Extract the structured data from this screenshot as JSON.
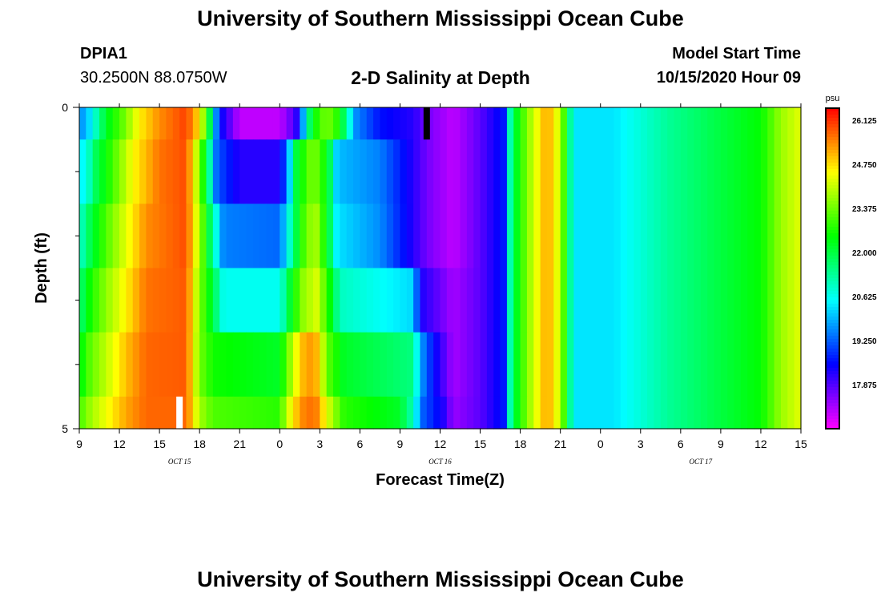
{
  "header": {
    "title": "University of Southern Mississippi Ocean Cube",
    "station_name": "DPIA1",
    "station_coords": "30.2500N 88.0750W",
    "model_start_label": "Model Start Time",
    "model_start_value": "10/15/2020 Hour 09"
  },
  "footer": {
    "title": "University of Southern Mississippi Ocean Cube"
  },
  "chart_data": {
    "type": "heatmap",
    "title": "2-D Salinity at Depth",
    "xlabel": "Forecast Time(Z)",
    "ylabel": "Depth (ft)",
    "colorbar": {
      "unit_label": "psu",
      "min": 16.5,
      "max": 26.5,
      "ticks": [
        "26.125",
        "24.750",
        "23.375",
        "22.000",
        "20.625",
        "19.250",
        "17.875"
      ],
      "tick_values": [
        26.125,
        24.75,
        23.375,
        22.0,
        20.625,
        19.25,
        17.875
      ]
    },
    "x_axis": {
      "range_hours": [
        0,
        54
      ],
      "tick_labels": [
        "9",
        "12",
        "15",
        "18",
        "21",
        "0",
        "3",
        "6",
        "9",
        "12",
        "15",
        "18",
        "21",
        "0",
        "3",
        "6",
        "9",
        "12",
        "15"
      ],
      "date_labels": [
        {
          "text": "OCT 15",
          "hour": 7.5
        },
        {
          "text": "OCT 16",
          "hour": 27
        },
        {
          "text": "OCT 17",
          "hour": 46.5
        }
      ]
    },
    "y_axis": {
      "range": [
        0,
        5
      ],
      "tick_labels": [
        "0",
        "5"
      ],
      "minor_ticks": [
        1,
        2,
        3,
        4
      ]
    },
    "layers": [
      {
        "depth_range": [
          0,
          0.5
        ],
        "knots": [
          [
            0,
            19.5
          ],
          [
            0.8,
            20.3
          ],
          [
            2,
            22.2
          ],
          [
            3.3,
            23.3
          ],
          [
            4.5,
            24.6
          ],
          [
            6,
            25.4
          ],
          [
            8,
            26.0
          ],
          [
            8.9,
            24.8
          ],
          [
            9.6,
            22.8
          ],
          [
            10,
            20.5
          ],
          [
            10.5,
            18.6
          ],
          [
            12,
            17.0
          ],
          [
            15,
            17.0
          ],
          [
            16.2,
            18.0
          ],
          [
            16.8,
            20.0
          ],
          [
            17.4,
            22.3
          ],
          [
            18.5,
            23.5
          ],
          [
            19.5,
            22.6
          ],
          [
            20,
            21.2
          ],
          [
            20.7,
            19.6
          ],
          [
            22.5,
            18.6
          ],
          [
            25,
            18.2
          ],
          [
            26,
            17.6
          ],
          [
            28,
            17.0
          ],
          [
            30,
            17.8
          ],
          [
            32,
            18.8
          ],
          [
            32.3,
            21.6
          ],
          [
            33.5,
            23.5
          ],
          [
            35,
            25.3
          ],
          [
            36,
            24.0
          ],
          [
            36.5,
            22.2
          ],
          [
            37,
            20.3
          ],
          [
            40,
            20.3
          ],
          [
            44,
            21.3
          ],
          [
            48,
            22.0
          ],
          [
            51,
            22.5
          ],
          [
            52.5,
            23.7
          ],
          [
            54,
            24.3
          ]
        ]
      },
      {
        "depth_range": [
          0.5,
          1.5
        ],
        "knots": [
          [
            0,
            20.3
          ],
          [
            0.6,
            20.8
          ],
          [
            1.2,
            21.8
          ],
          [
            2.5,
            23.0
          ],
          [
            4,
            24.5
          ],
          [
            6,
            25.6
          ],
          [
            8,
            25.9
          ],
          [
            9,
            23.5
          ],
          [
            9.8,
            21.0
          ],
          [
            10.3,
            19.2
          ],
          [
            12,
            18.2
          ],
          [
            15,
            18.2
          ],
          [
            15.6,
            19.6
          ],
          [
            16.2,
            22.0
          ],
          [
            17.5,
            23.6
          ],
          [
            18.6,
            22.3
          ],
          [
            19.3,
            20.0
          ],
          [
            22.5,
            19.5
          ],
          [
            25,
            18.2
          ],
          [
            26,
            17.6
          ],
          [
            28,
            17.0
          ],
          [
            30,
            17.8
          ],
          [
            32,
            18.8
          ],
          [
            32.3,
            21.6
          ],
          [
            33.5,
            23.5
          ],
          [
            35,
            25.3
          ],
          [
            36,
            24.0
          ],
          [
            36.5,
            22.2
          ],
          [
            37,
            20.3
          ],
          [
            40,
            20.3
          ],
          [
            44,
            21.3
          ],
          [
            48,
            22.0
          ],
          [
            51,
            22.5
          ],
          [
            52.5,
            23.7
          ],
          [
            54,
            24.3
          ]
        ]
      },
      {
        "depth_range": [
          1.5,
          2.5
        ],
        "knots": [
          [
            0,
            20.8
          ],
          [
            0.8,
            21.9
          ],
          [
            2,
            23.1
          ],
          [
            3.5,
            24.3
          ],
          [
            5,
            25.4
          ],
          [
            8,
            25.9
          ],
          [
            9,
            23.8
          ],
          [
            10,
            21.2
          ],
          [
            10.8,
            19.5
          ],
          [
            15,
            19.3
          ],
          [
            15.8,
            21.0
          ],
          [
            16.6,
            22.8
          ],
          [
            17.6,
            24.0
          ],
          [
            18.6,
            22.2
          ],
          [
            19.3,
            20.3
          ],
          [
            22.5,
            19.6
          ],
          [
            25,
            18.2
          ],
          [
            26,
            17.6
          ],
          [
            28,
            17.0
          ],
          [
            30,
            17.8
          ],
          [
            32,
            18.8
          ],
          [
            32.3,
            21.6
          ],
          [
            33.5,
            23.5
          ],
          [
            35,
            25.3
          ],
          [
            36,
            24.0
          ],
          [
            36.5,
            22.2
          ],
          [
            37,
            20.3
          ],
          [
            40,
            20.3
          ],
          [
            44,
            21.3
          ],
          [
            48,
            22.0
          ],
          [
            51,
            22.5
          ],
          [
            52.5,
            23.7
          ],
          [
            54,
            24.3
          ]
        ]
      },
      {
        "depth_range": [
          2.5,
          3.5
        ],
        "knots": [
          [
            0,
            21.5
          ],
          [
            0.8,
            22.6
          ],
          [
            2,
            23.6
          ],
          [
            3.5,
            24.6
          ],
          [
            5,
            25.6
          ],
          [
            8,
            25.8
          ],
          [
            9,
            23.5
          ],
          [
            10,
            22.0
          ],
          [
            10.8,
            20.6
          ],
          [
            15,
            20.6
          ],
          [
            15.8,
            22.2
          ],
          [
            16.8,
            23.7
          ],
          [
            17.8,
            24.2
          ],
          [
            18.8,
            22.4
          ],
          [
            19.5,
            21.0
          ],
          [
            25,
            20.2
          ],
          [
            25.5,
            18.3
          ],
          [
            26.5,
            17.9
          ],
          [
            28,
            17.2
          ],
          [
            30,
            17.8
          ],
          [
            32,
            18.8
          ],
          [
            32.3,
            21.6
          ],
          [
            33.5,
            23.5
          ],
          [
            35,
            25.3
          ],
          [
            36,
            24.0
          ],
          [
            36.5,
            22.2
          ],
          [
            37,
            20.3
          ],
          [
            40,
            20.3
          ],
          [
            44,
            21.3
          ],
          [
            48,
            22.0
          ],
          [
            51,
            22.5
          ],
          [
            52.5,
            23.7
          ],
          [
            54,
            24.3
          ]
        ]
      },
      {
        "depth_range": [
          3.5,
          4.5
        ],
        "knots": [
          [
            0,
            22.3
          ],
          [
            0.8,
            23.2
          ],
          [
            2,
            24.0
          ],
          [
            3.5,
            25.0
          ],
          [
            5,
            25.7
          ],
          [
            8,
            25.8
          ],
          [
            9,
            23.4
          ],
          [
            10,
            22.6
          ],
          [
            15,
            22.2
          ],
          [
            15.5,
            23.2
          ],
          [
            16.6,
            25.0
          ],
          [
            17.6,
            25.4
          ],
          [
            18.6,
            23.2
          ],
          [
            19.8,
            22.2
          ],
          [
            25,
            21.5
          ],
          [
            25.5,
            19.8
          ],
          [
            26.5,
            18.6
          ],
          [
            28,
            17.2
          ],
          [
            30,
            17.8
          ],
          [
            32,
            18.8
          ],
          [
            32.3,
            21.6
          ],
          [
            33.5,
            23.5
          ],
          [
            35,
            25.3
          ],
          [
            36,
            24.0
          ],
          [
            36.5,
            22.2
          ],
          [
            37,
            20.3
          ],
          [
            40,
            20.3
          ],
          [
            44,
            21.3
          ],
          [
            48,
            22.0
          ],
          [
            51,
            22.5
          ],
          [
            52.5,
            23.7
          ],
          [
            54,
            24.3
          ]
        ]
      },
      {
        "depth_range": [
          4.5,
          5
        ],
        "knots": [
          [
            0,
            23.0
          ],
          [
            0.8,
            23.7
          ],
          [
            2,
            24.4
          ],
          [
            3.5,
            25.2
          ],
          [
            5,
            25.7
          ],
          [
            8,
            25.7
          ],
          [
            9,
            23.8
          ],
          [
            10,
            23.1
          ],
          [
            15,
            22.8
          ],
          [
            15.5,
            24.0
          ],
          [
            16.6,
            25.4
          ],
          [
            17.6,
            25.7
          ],
          [
            18.6,
            24.2
          ],
          [
            19.8,
            22.8
          ],
          [
            24,
            22.2
          ],
          [
            25,
            21.0
          ],
          [
            25.6,
            19.3
          ],
          [
            27.2,
            18.3
          ],
          [
            28,
            17.3
          ],
          [
            30,
            17.8
          ],
          [
            32,
            18.8
          ],
          [
            32.3,
            21.6
          ],
          [
            33.5,
            23.5
          ],
          [
            35,
            25.3
          ],
          [
            36,
            24.0
          ],
          [
            36.5,
            22.2
          ],
          [
            37,
            20.3
          ],
          [
            40,
            20.3
          ],
          [
            44,
            21.3
          ],
          [
            48,
            22.0
          ],
          [
            51,
            22.5
          ],
          [
            52.5,
            23.7
          ],
          [
            54,
            24.3
          ]
        ]
      }
    ],
    "markers": [
      {
        "name": "now-marker-top",
        "hour": 26,
        "depth_range": [
          0,
          0.5
        ],
        "color": "#000000"
      },
      {
        "name": "now-marker-bottom",
        "hour": 7.5,
        "depth_range": [
          4.5,
          5
        ],
        "color": "#ffffff"
      }
    ]
  }
}
